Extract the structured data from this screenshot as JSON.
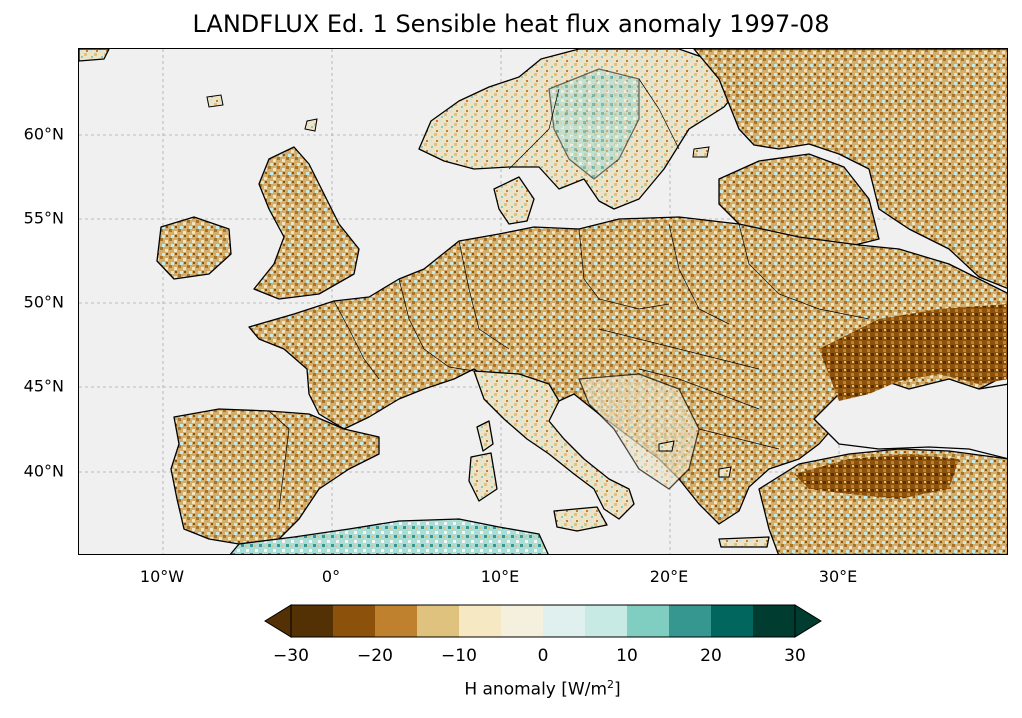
{
  "title": "LANDFLUX Ed. 1 Sensible heat flux anomaly 1997-08",
  "map": {
    "lon_range": [
      -15,
      40
    ],
    "lat_range": [
      35,
      65
    ],
    "gridlines": "dashed",
    "ocean_color": "#f0f0f0",
    "coastline_color": "#000000"
  },
  "lat_ticks": [
    "60°N",
    "55°N",
    "50°N",
    "45°N",
    "40°N"
  ],
  "lon_ticks": [
    "10°W",
    "0°",
    "10°E",
    "20°E",
    "30°E"
  ],
  "colorbar": {
    "label_prefix": "H anomaly [W/m",
    "label_sup": "2",
    "label_suffix": "]",
    "tick_labels": [
      "−30",
      "−20",
      "−10",
      "0",
      "10",
      "20",
      "30"
    ],
    "colors": [
      "#543005",
      "#8c510a",
      "#bf812d",
      "#dfc27d",
      "#f6e8c3",
      "#f5f5f5",
      "#c7eae5",
      "#80cdc1",
      "#35978f",
      "#01665e",
      "#003c30"
    ],
    "extend": "both"
  }
}
